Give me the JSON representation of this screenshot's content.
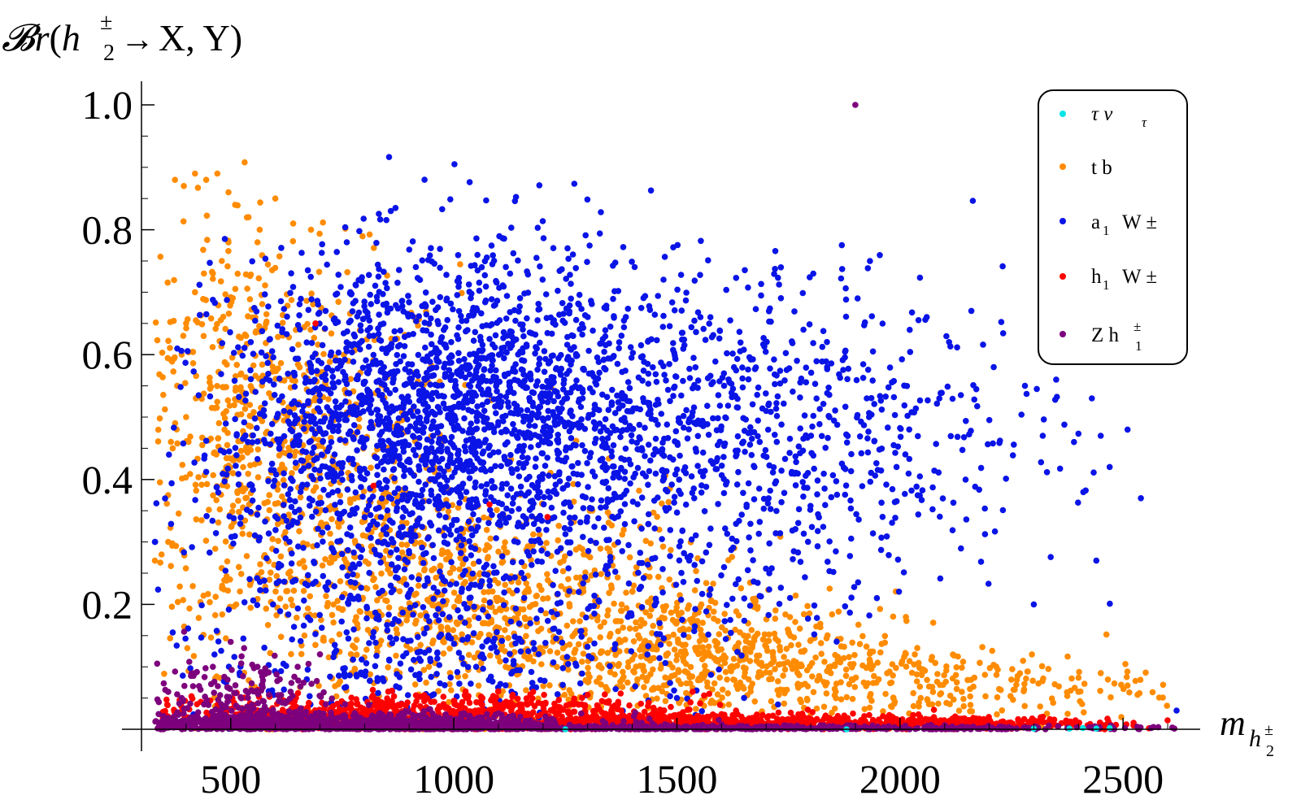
{
  "chart_data": {
    "type": "scatter",
    "title": "",
    "ylabel": {
      "prefix": "𝓑",
      "r": "r",
      "open": "(",
      "h": "h",
      "sup": "±",
      "sub": "2",
      "arrow": "→",
      "targets": "X, Y)"
    },
    "xlabel": {
      "m": "m",
      "h": "h",
      "sub": "2",
      "sup": "±"
    },
    "xlim": [
      300,
      2640
    ],
    "ylim": [
      0,
      1.0
    ],
    "x_ticks": [
      500,
      1000,
      1500,
      2000,
      2500
    ],
    "x_tick_labels": [
      "500",
      "1000",
      "1500",
      "2000",
      "2500"
    ],
    "y_ticks": [
      0.2,
      0.4,
      0.6,
      0.8,
      1.0
    ],
    "y_tick_labels": [
      "0.2",
      "0.4",
      "0.6",
      "0.8",
      "1.0"
    ],
    "grid": false,
    "legend_position": "top-right",
    "series": [
      {
        "name": "τ ν_τ",
        "legend": {
          "main": "τ  ν",
          "sub": "τ",
          "sup": ""
        },
        "color": "#00e5e5",
        "points": [
          [
            2380,
            0.001
          ],
          [
            2410,
            0.002
          ],
          [
            2440,
            0.001
          ],
          [
            2470,
            0.002
          ],
          [
            1250,
            0.0
          ],
          [
            1880,
            0.0
          ],
          [
            2300,
            0.001
          ]
        ]
      },
      {
        "name": "t b",
        "legend": {
          "main": "t  b",
          "sub": "",
          "sup": ""
        },
        "color": "#ff8c00",
        "points": [
          [
            375,
            0.88
          ],
          [
            395,
            0.87
          ],
          [
            420,
            0.89
          ],
          [
            445,
            0.88
          ],
          [
            470,
            0.89
          ],
          [
            495,
            0.86
          ],
          [
            510,
            0.84
          ],
          [
            540,
            0.82
          ],
          [
            565,
            0.8
          ],
          [
            600,
            0.85
          ],
          [
            640,
            0.81
          ],
          [
            680,
            0.8
          ],
          [
            560,
            0.78
          ],
          [
            480,
            0.75
          ],
          [
            440,
            0.73
          ],
          [
            460,
            0.73
          ],
          [
            420,
            0.7
          ],
          [
            400,
            0.65
          ],
          [
            390,
            0.6
          ],
          [
            380,
            0.55
          ],
          [
            400,
            0.5
          ],
          [
            370,
            0.45
          ],
          [
            360,
            0.3
          ],
          [
            345,
            0.28
          ],
          [
            330,
            0.27
          ],
          [
            2510,
            0.07
          ],
          [
            2450,
            0.09
          ],
          [
            2400,
            0.06
          ]
        ],
        "clusters": [
          {
            "cx": 650,
            "cy": 0.42,
            "sx": 180,
            "sy": 0.16,
            "n": 650
          },
          {
            "cx": 1050,
            "cy": 0.2,
            "sx": 260,
            "sy": 0.09,
            "n": 750
          },
          {
            "cx": 1550,
            "cy": 0.12,
            "sx": 220,
            "sy": 0.05,
            "n": 550
          },
          {
            "cx": 2050,
            "cy": 0.07,
            "sx": 260,
            "sy": 0.03,
            "n": 260
          },
          {
            "cx": 480,
            "cy": 0.55,
            "sx": 80,
            "sy": 0.15,
            "n": 160
          }
        ]
      },
      {
        "name": "a₁ W±",
        "legend": {
          "main": "a",
          "sub": "1",
          "sup": "W ±"
        },
        "color": "#0a14e6",
        "points": [
          [
            1905,
            0.69
          ],
          [
            2060,
            0.66
          ],
          [
            2160,
            0.67
          ],
          [
            2110,
            0.62
          ],
          [
            2210,
            0.58
          ],
          [
            2280,
            0.55
          ],
          [
            2350,
            0.56
          ],
          [
            2430,
            0.53
          ],
          [
            2510,
            0.48
          ],
          [
            2450,
            0.47
          ],
          [
            2390,
            0.46
          ],
          [
            2320,
            0.47
          ],
          [
            2470,
            0.42
          ],
          [
            2440,
            0.27
          ],
          [
            2300,
            0.2
          ],
          [
            2620,
            0.03
          ],
          [
            330,
            0.3
          ],
          [
            2540,
            0.37
          ],
          [
            1500,
            0.05
          ]
        ],
        "clusters": [
          {
            "cx": 950,
            "cy": 0.52,
            "sx": 230,
            "sy": 0.12,
            "n": 1500
          },
          {
            "cx": 1350,
            "cy": 0.48,
            "sx": 280,
            "sy": 0.14,
            "n": 900
          },
          {
            "cx": 1850,
            "cy": 0.45,
            "sx": 260,
            "sy": 0.12,
            "n": 400
          },
          {
            "cx": 800,
            "cy": 0.3,
            "sx": 220,
            "sy": 0.15,
            "n": 500
          },
          {
            "cx": 1100,
            "cy": 0.12,
            "sx": 300,
            "sy": 0.07,
            "n": 250
          }
        ]
      },
      {
        "name": "h₁ W±",
        "legend": {
          "main": "h",
          "sub": "1",
          "sup": "W ±"
        },
        "color": "#ff0000",
        "points": [
          [
            690,
            0.65
          ],
          [
            820,
            0.39
          ],
          [
            1080,
            0.36
          ],
          [
            1210,
            0.34
          ],
          [
            360,
            0.02
          ],
          [
            1980,
            0.02
          ],
          [
            2070,
            0.015
          ]
        ],
        "clusters": [
          {
            "cx": 900,
            "cy": 0.022,
            "sx": 330,
            "sy": 0.016,
            "n": 900
          },
          {
            "cx": 1600,
            "cy": 0.012,
            "sx": 300,
            "sy": 0.007,
            "n": 500
          },
          {
            "cx": 2150,
            "cy": 0.01,
            "sx": 180,
            "sy": 0.006,
            "n": 180
          }
        ]
      },
      {
        "name": "Z h₁±",
        "legend": {
          "main": "Z  h",
          "sub": "1",
          "sup": "±"
        },
        "color": "#7d007d",
        "points": [
          [
            1900,
            1.0
          ],
          [
            2615,
            0.001
          ],
          [
            360,
            0.06
          ],
          [
            390,
            0.05
          ],
          [
            420,
            0.09
          ],
          [
            460,
            0.1
          ],
          [
            500,
            0.14
          ],
          [
            530,
            0.13
          ],
          [
            560,
            0.1
          ],
          [
            610,
            0.08
          ],
          [
            650,
            0.1
          ],
          [
            700,
            0.12
          ]
        ],
        "clusters": [
          {
            "cx": 700,
            "cy": 0.01,
            "sx": 300,
            "sy": 0.008,
            "n": 900
          },
          {
            "cx": 1500,
            "cy": 0.002,
            "sx": 550,
            "sy": 0.002,
            "n": 700
          },
          {
            "cx": 520,
            "cy": 0.05,
            "sx": 100,
            "sy": 0.035,
            "n": 160
          }
        ]
      }
    ]
  }
}
